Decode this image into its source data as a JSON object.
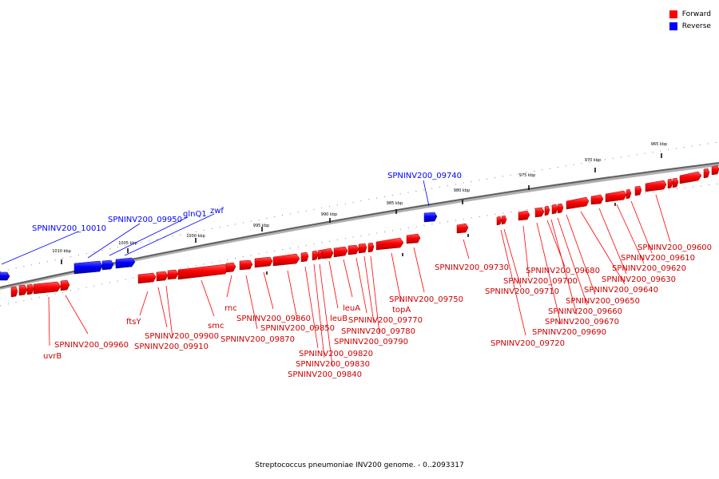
{
  "legend": {
    "items": [
      {
        "label": "Forward",
        "color": "#ff0000"
      },
      {
        "label": "Reverse",
        "color": "#0000ff"
      }
    ]
  },
  "caption": "Streptococcus pneumoniae INV200 genome. - 0..2093317",
  "ticks": [
    "1010 kbp",
    "1005 kbp",
    "1000 kbp",
    "995 kbp",
    "990 kbp",
    "985 kbp",
    "980 kbp",
    "975 kbp",
    "970 kbp",
    "965 kbp"
  ],
  "reverse_labels": [
    "SPNINV200_10010",
    "SPNINV200_09950",
    "glnQ1",
    "zwf",
    "SPNINV200_09740"
  ],
  "forward_labels": [
    "uvrB",
    "SPNINV200_09960",
    "ftsY",
    "SPNINV200_09900",
    "SPNINV200_09910",
    "smc",
    "rnc",
    "SPNINV200_09870",
    "SPNINV200_09860",
    "SPNINV200_09850",
    "SPNINV200_09820",
    "SPNINV200_09830",
    "SPNINV200_09840",
    "leuA",
    "leuB",
    "SPNINV200_09770",
    "SPNINV200_09780",
    "SPNINV200_09790",
    "topA",
    "SPNINV200_09750",
    "SPNINV200_09730",
    "SPNINV200_09720",
    "SPNINV200_09710",
    "SPNINV200_09700",
    "SPNINV200_09690",
    "SPNINV200_09680",
    "SPNINV200_09670",
    "SPNINV200_09660",
    "SPNINV200_09650",
    "SPNINV200_09640",
    "SPNINV200_09630",
    "SPNINV200_09620",
    "SPNINV200_09610",
    "SPNINV200_09600"
  ]
}
